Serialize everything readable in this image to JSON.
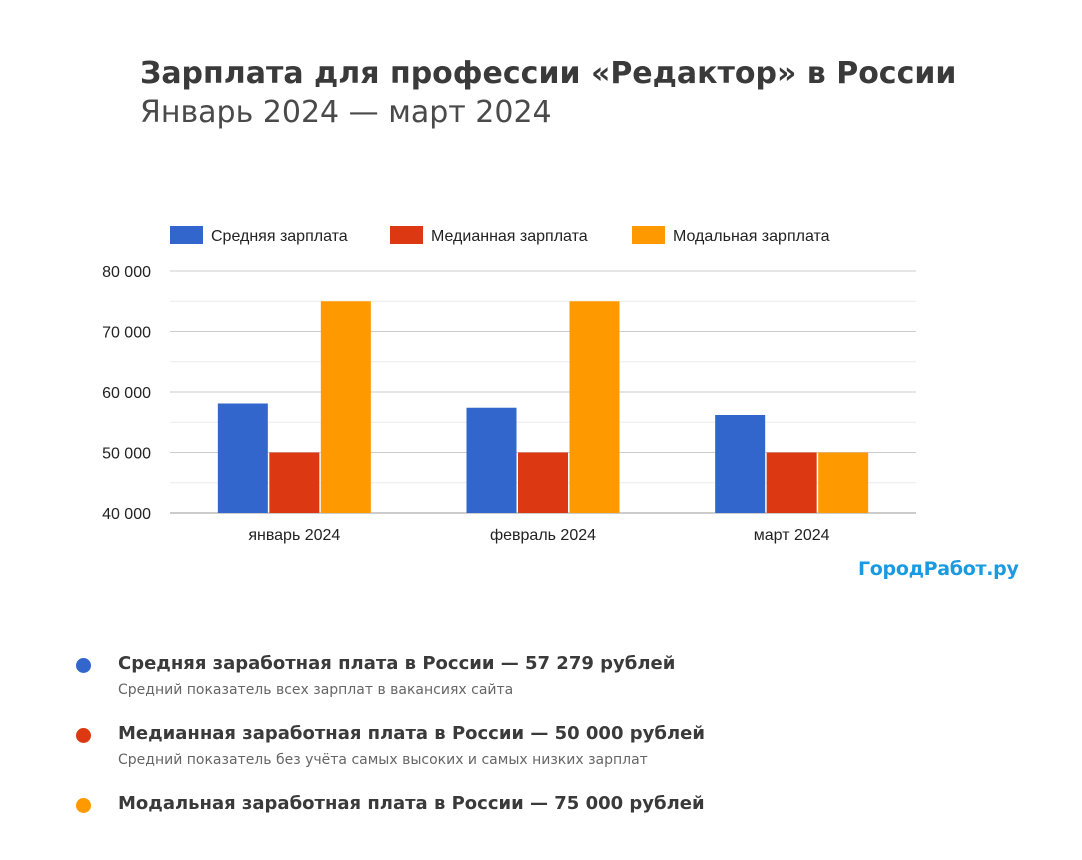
{
  "header": {
    "title": "Зарплата для профессии «Редактор» в России",
    "subtitle": "Январь 2024 — март 2024"
  },
  "brand": "ГородРабот.ру",
  "colors": {
    "average": "#3366cc",
    "median": "#dc3912",
    "modal": "#ff9900"
  },
  "chart_data": {
    "type": "bar",
    "title": "",
    "xlabel": "",
    "ylabel": "",
    "categories": [
      "январь 2024",
      "февраль 2024",
      "март 2024"
    ],
    "series": [
      {
        "name": "Средняя зарплата",
        "color": "#3366cc",
        "values": [
          58100,
          57400,
          56200
        ]
      },
      {
        "name": "Медианная зарплата",
        "color": "#dc3912",
        "values": [
          50000,
          50000,
          50000
        ]
      },
      {
        "name": "Модальная зарплата",
        "color": "#ff9900",
        "values": [
          75000,
          75000,
          50000
        ]
      }
    ],
    "ylim": [
      40000,
      80000
    ],
    "yticks": [
      40000,
      50000,
      60000,
      70000,
      80000
    ],
    "ytick_labels": [
      "40 000",
      "50 000",
      "60 000",
      "70 000",
      "80 000"
    ],
    "grid": true,
    "legend_position": "top"
  },
  "stats": [
    {
      "title": "Средняя заработная плата в России — 57 279 рублей",
      "desc": "Средний показатель всех зарплат в вакансиях сайта",
      "color": "#3366cc"
    },
    {
      "title": "Медианная заработная плата в России — 50 000 рублей",
      "desc": "Средний показатель без учёта самых высоких и самых низких зарплат",
      "color": "#dc3912"
    },
    {
      "title": "Модальная заработная плата в России — 75 000 рублей",
      "desc": "",
      "color": "#ff9900"
    }
  ]
}
